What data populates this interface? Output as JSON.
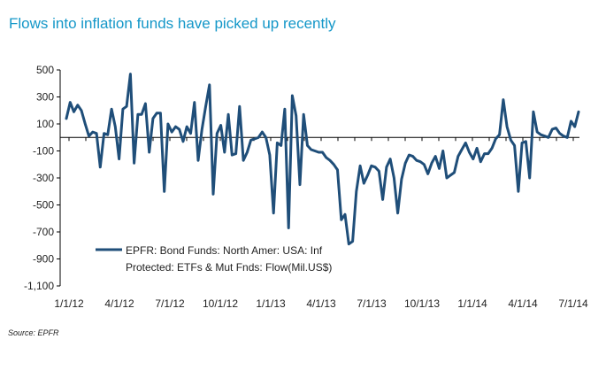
{
  "title": "Flows into inflation funds have picked up recently",
  "source": "Source: EPFR",
  "colors": {
    "title": "#1497c8",
    "series": "#1f4e79",
    "axis": "#000000"
  },
  "chart_data": {
    "type": "line",
    "title": "Flows into inflation funds have picked up recently",
    "xlabel": "",
    "ylabel": "",
    "ylim": [
      -1100,
      500
    ],
    "yticks": [
      500,
      300,
      100,
      -100,
      -300,
      -500,
      -700,
      -900,
      -1100
    ],
    "ytick_labels": [
      "500",
      "300",
      "100",
      "-100",
      "-300",
      "-500",
      "-700",
      "-900",
      "-1,100"
    ],
    "xtick_labels": [
      "1/1/12",
      "4/1/12",
      "7/1/12",
      "10/1/12",
      "1/1/13",
      "4/1/13",
      "7/1/13",
      "10/1/13",
      "1/1/14",
      "4/1/14",
      "7/1/14"
    ],
    "grid": false,
    "legend": "bottom-left",
    "series": [
      {
        "name": "EPFR: Bond Funds: North Amer: USA: Inf Protected: ETFs & Mut Fnds: Flow(Mil.US$)",
        "legend_lines": [
          "EPFR: Bond Funds: North Amer: USA: Inf",
          "Protected: ETFs & Mut Fnds: Flow(Mil.US$)"
        ],
        "values": [
          140,
          260,
          190,
          240,
          200,
          100,
          10,
          40,
          30,
          -220,
          30,
          20,
          210,
          80,
          -160,
          210,
          230,
          470,
          -190,
          170,
          170,
          250,
          -110,
          140,
          180,
          180,
          -400,
          100,
          40,
          80,
          60,
          -30,
          80,
          30,
          260,
          -170,
          60,
          230,
          390,
          -420,
          30,
          90,
          -110,
          170,
          -130,
          -120,
          230,
          -170,
          -110,
          -20,
          -10,
          0,
          40,
          0,
          -130,
          -560,
          -40,
          -60,
          210,
          -670,
          310,
          160,
          -350,
          170,
          -60,
          -90,
          -100,
          -110,
          -110,
          -150,
          -170,
          -200,
          -240,
          -610,
          -570,
          -790,
          -770,
          -400,
          -210,
          -340,
          -280,
          -210,
          -220,
          -250,
          -460,
          -220,
          -160,
          -300,
          -560,
          -310,
          -190,
          -130,
          -140,
          -170,
          -180,
          -200,
          -270,
          -190,
          -140,
          -230,
          -100,
          -300,
          -280,
          -260,
          -140,
          -90,
          -40,
          -110,
          -160,
          -80,
          -180,
          -120,
          -120,
          -80,
          -10,
          20,
          280,
          80,
          -20,
          -60,
          -400,
          -40,
          -30,
          -300,
          190,
          40,
          20,
          10,
          0,
          60,
          70,
          30,
          10,
          0,
          120,
          80,
          190
        ]
      }
    ]
  }
}
